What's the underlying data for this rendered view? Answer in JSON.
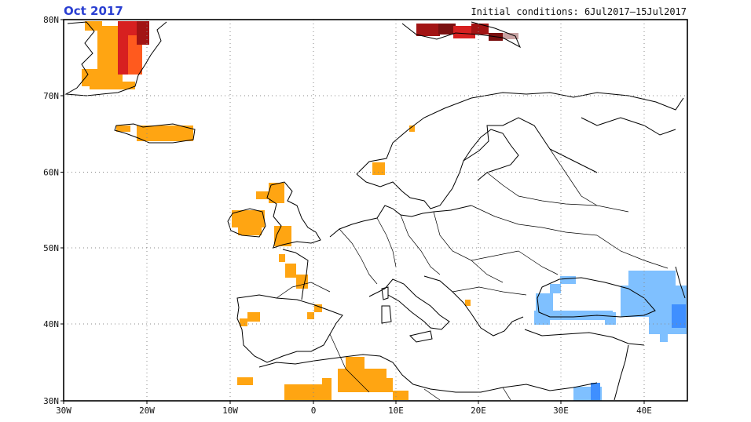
{
  "title_left": "Oct 2017",
  "title_right": "Initial conditions: 6Jul2017–15Jul2017",
  "lat_labels": [
    "80N",
    "70N",
    "60N",
    "50N",
    "40N",
    "30N"
  ],
  "lon_labels": [
    "30W",
    "20W",
    "10W",
    "0",
    "10E",
    "20E",
    "30E",
    "40E"
  ],
  "colors": {
    "orange": "#ffa512",
    "orange_red": "#ff5a1e",
    "red": "#d72020",
    "dark_red": "#a21414",
    "maroon": "#7a1010",
    "light_blue": "#7fc0ff",
    "blue": "#3f8fff"
  }
}
